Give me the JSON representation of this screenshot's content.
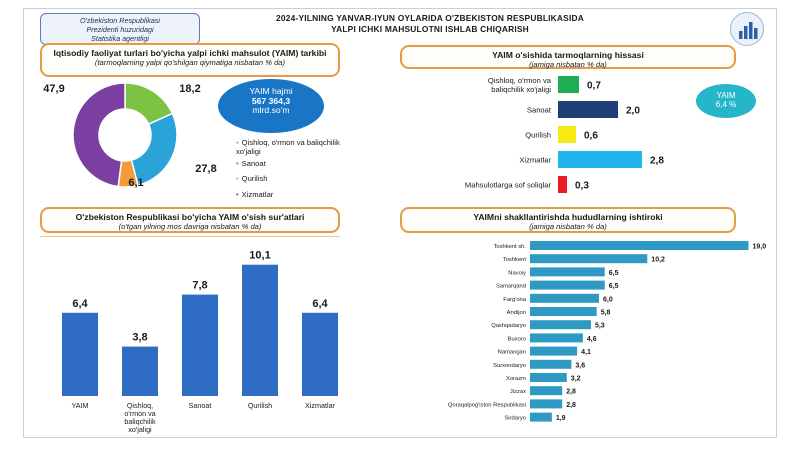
{
  "header": {
    "agency": [
      "O'zbekiston Respublikasi",
      "Prezidenti huzuridagi",
      "Statistika agentligi"
    ],
    "title_line1": "2024-YILNING YANVAR-IYUN OYLARIDA O'ZBEKISTON RESPUBLIKASIDA",
    "title_line2": "YALPI ICHKI MAHSULOTNI ISHLAB CHIQARISH"
  },
  "structure_panel": {
    "title": "Iqtisodiy faoliyat turlari bo'yicha yalpi ichki mahsulot (YAIM) tarkibi",
    "subtitle": "(tarmoqlarning yalpi qo'shilgan qiymatiga nisbatan % da)",
    "volume_badge": [
      "YAIM hajmi",
      "567 364,3",
      "mlrd.so'm"
    ],
    "legend": [
      {
        "label": "Qishloq, o'rmon va baliqchilik xo'jaligi",
        "color": "#7dc243"
      },
      {
        "label": "Sanoat",
        "color": "#29a3d8"
      },
      {
        "label": "Qurilish",
        "color": "#f29b38"
      },
      {
        "label": "Xizmatlar",
        "color": "#7b3fa1"
      }
    ]
  },
  "share_panel": {
    "title": "YAIM o'sishida tarmoqlarning hissasi",
    "subtitle": "(jamiga nisbatan % da)",
    "badge": [
      "YAIM",
      "6,4 %"
    ]
  },
  "growth_panel": {
    "title": "O'zbekiston Respublikasi bo'yicha YAIM o'sish sur'atlari",
    "subtitle": "(o'tgan yilning mos davriga nisbatan % da)"
  },
  "regions_panel": {
    "title": "YAIMni shakllantirishda hududlarning ishtiroki",
    "subtitle": "(jamiga nisbatan % da)"
  },
  "chart_data": [
    {
      "id": "structure",
      "type": "pie",
      "categories": [
        "Qishloq, o'rmon va baliqchilik xo'jaligi",
        "Sanoat",
        "Qurilish",
        "Xizmatlar"
      ],
      "values": [
        18.2,
        27.8,
        6.1,
        47.9
      ],
      "labels": [
        "18,2",
        "27,8",
        "6,1",
        "47,9"
      ],
      "colors": [
        "#7dc243",
        "#29a3d8",
        "#f29b38",
        "#7b3fa1"
      ],
      "donut": true
    },
    {
      "id": "contribution",
      "type": "bar",
      "orientation": "horizontal",
      "categories": [
        "Qishloq, o'rmon va baliqchilik xo'jaligi",
        "Sanoat",
        "Qurilish",
        "Xizmatlar",
        "Mahsulotlarga sof soliqlar"
      ],
      "category_lines": [
        [
          "Qishloq, o'rmon va",
          "baliqchilik xo'jaligi"
        ],
        [
          "Sanoat"
        ],
        [
          "Qurilish"
        ],
        [
          "Xizmatlar"
        ],
        [
          "Mahsulotlarga sof soliqlar"
        ]
      ],
      "values": [
        0.7,
        2.0,
        0.6,
        2.8,
        0.3
      ],
      "labels": [
        "0,7",
        "2,0",
        "0,6",
        "2,8",
        "0,3"
      ],
      "colors": [
        "#1fae54",
        "#1f3f74",
        "#f5ea14",
        "#22b4ec",
        "#e81c24"
      ]
    },
    {
      "id": "growth",
      "type": "bar",
      "orientation": "vertical",
      "categories": [
        "YAIM",
        "Qishloq, o'rmon va baliqchilik xo'jaligi",
        "Sanoat",
        "Qurilish",
        "Xizmatlar"
      ],
      "category_lines": [
        [
          "YAIM"
        ],
        [
          "Qishloq,",
          "o'rmon va",
          "baliqchilik",
          "xo'jaligi"
        ],
        [
          "Sanoat"
        ],
        [
          "Qurilish"
        ],
        [
          "Xizmatlar"
        ]
      ],
      "values": [
        6.4,
        3.8,
        7.8,
        10.1,
        6.4
      ],
      "labels": [
        "6,4",
        "3,8",
        "7,8",
        "10,1",
        "6,4"
      ],
      "color": "#2f6cc3"
    },
    {
      "id": "regions",
      "type": "bar",
      "orientation": "horizontal",
      "categories": [
        "Toshkent sh.",
        "Toshkent",
        "Navoiy",
        "Samarqand",
        "Farg'ona",
        "Andijon",
        "Qashqadaryo",
        "Buxoro",
        "Namangan",
        "Surxondaryo",
        "Xorazm",
        "Jizzax",
        "Qoraqalpog'iston Respublikasi",
        "Sirdaryo"
      ],
      "values": [
        19.0,
        10.2,
        6.5,
        6.5,
        6.0,
        5.8,
        5.3,
        4.6,
        4.1,
        3.6,
        3.2,
        2.8,
        2.8,
        1.9
      ],
      "labels": [
        "19,0",
        "10,2",
        "6,5",
        "6,5",
        "6,0",
        "5,8",
        "5,3",
        "4,6",
        "4,1",
        "3,6",
        "3,2",
        "2,8",
        "2,8",
        "1,9"
      ],
      "color": "#2e9ac4"
    }
  ]
}
